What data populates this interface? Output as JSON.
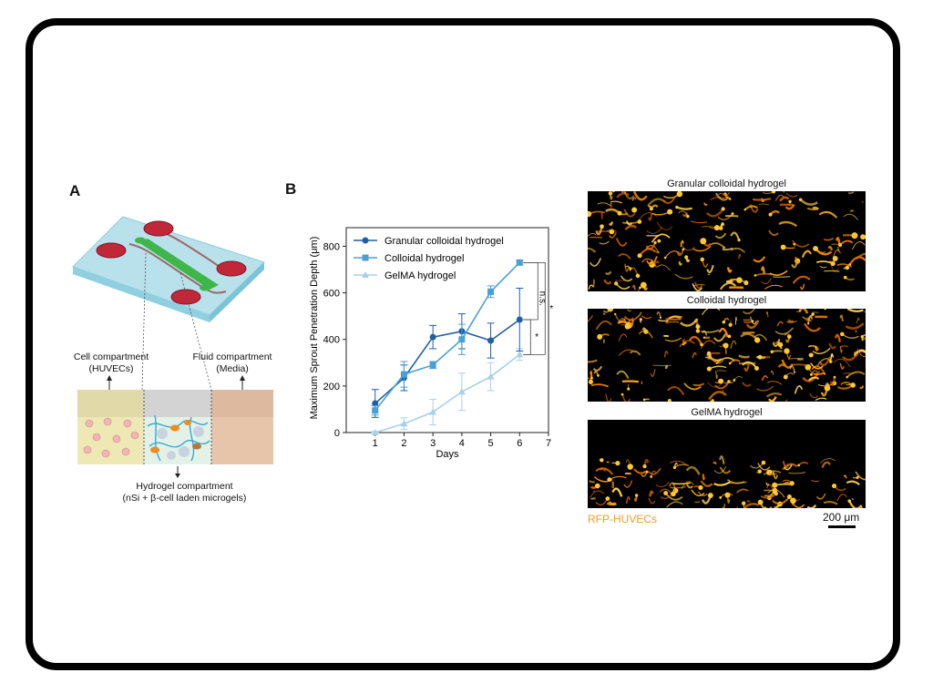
{
  "panelA": {
    "letter": "A",
    "cell_label_line1": "Cell compartment",
    "cell_label_line2": "(HUVECs)",
    "fluid_label_line1": "Fluid compartment",
    "fluid_label_line2": "(Media)",
    "hydrogel_label_line1": "Hydrogel compartment",
    "hydrogel_label_line2": "(nSi + β-cell laden microgels)"
  },
  "panelB": {
    "letter": "B",
    "sig_ns": "n.s.",
    "sig_star1": "*",
    "sig_star2": "*"
  },
  "chart_data": {
    "type": "line",
    "xlabel": "Days",
    "ylabel": "Maximum Sprout Penetration Depth (μm)",
    "xlim": [
      0,
      7
    ],
    "ylim": [
      0,
      880
    ],
    "xticks": [
      "1",
      "2",
      "3",
      "4",
      "5",
      "6",
      "7"
    ],
    "yticks": [
      "0",
      "200",
      "400",
      "600",
      "800"
    ],
    "x": [
      1,
      2,
      3,
      4,
      5,
      6
    ],
    "legend_position": "top-left",
    "series": [
      {
        "name": "Granular colloidal hydrogel",
        "color": "#1f5fa8",
        "marker": "circle",
        "values": [
          125,
          235,
          410,
          435,
          395,
          485
        ],
        "errors": [
          60,
          55,
          50,
          75,
          75,
          135
        ]
      },
      {
        "name": "Colloidal hydrogel",
        "color": "#4a9fd6",
        "marker": "square",
        "values": [
          95,
          250,
          290,
          400,
          605,
          730
        ],
        "errors": [
          20,
          55,
          15,
          65,
          25,
          10
        ]
      },
      {
        "name": "GelMA hydrogel",
        "color": "#a8d0ea",
        "marker": "triangle",
        "values": [
          0,
          38,
          88,
          175,
          240,
          335
        ],
        "errors": [
          5,
          25,
          55,
          80,
          60,
          25
        ]
      }
    ]
  },
  "images": {
    "title1": "Granular colloidal hydrogel",
    "title2": "Colloidal hydrogel",
    "title3": "GelMA hydrogel",
    "rfp_label": "RFP-HUVECs",
    "scale_label": "200 μm",
    "rfp_color": "#f59a2a"
  }
}
